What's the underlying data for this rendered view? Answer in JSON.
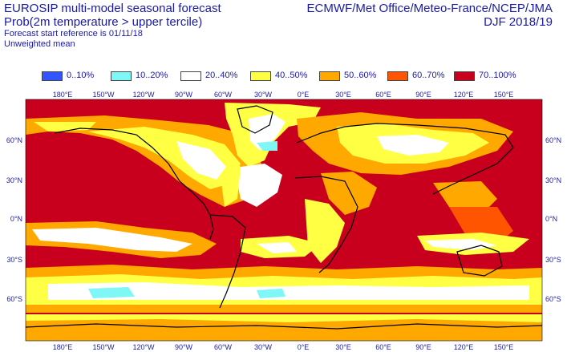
{
  "header": {
    "title_line1": "EUROSIP multi-model seasonal forecast",
    "title_line2": "Prob(2m temperature > upper tercile)",
    "forecast_ref": "Forecast start reference is 01/11/18",
    "weighting": "Unweighted mean",
    "centres": "ECMWF/Met Office/Meteo-France/NCEP/JMA",
    "season": "DJF 2018/19"
  },
  "legend": [
    {
      "label": "0..10%",
      "color": "#3355ff"
    },
    {
      "label": "10..20%",
      "color": "#7ff7f7"
    },
    {
      "label": "20..40%",
      "color": "#ffffff"
    },
    {
      "label": "40..50%",
      "color": "#ffff44"
    },
    {
      "label": "50..60%",
      "color": "#ffa800"
    },
    {
      "label": "60..70%",
      "color": "#ff5500"
    },
    {
      "label": "70..100%",
      "color": "#c8001e"
    }
  ],
  "map": {
    "lon_labels_top": [
      "180°E",
      "150°W",
      "120°W",
      "90°W",
      "60°W",
      "30°W",
      "0°E",
      "30°E",
      "60°E",
      "90°E",
      "120°E",
      "150°E"
    ],
    "lon_labels_bottom": [
      "180°E",
      "150°W",
      "120°W",
      "90°W",
      "60°W",
      "30°W",
      "0°E",
      "30°E",
      "60°E",
      "90°E",
      "120°E",
      "150°E"
    ],
    "lat_labels_left": [
      "60°N",
      "30°N",
      "0°N",
      "30°S",
      "60°S"
    ],
    "lat_labels_right": [
      "60°N",
      "30°N",
      "0°N",
      "30°S",
      "60°S"
    ]
  }
}
